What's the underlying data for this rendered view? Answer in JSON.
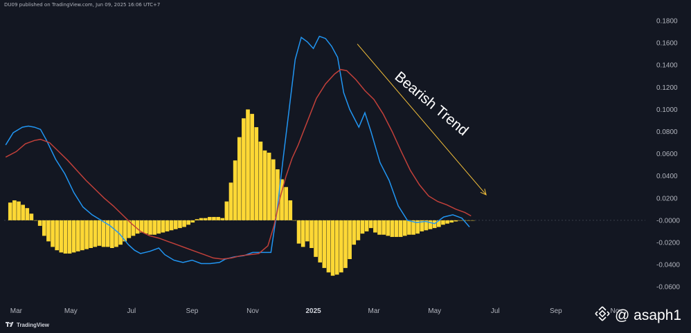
{
  "header": {
    "publisher_line": "DU09 published on TradingView.com, Jun 09, 2025 16:06 UTC+7"
  },
  "footer": {
    "logo_text": "TradingView"
  },
  "watermark": {
    "text": "@ asaph1"
  },
  "colors": {
    "background": "#131722",
    "macd_line": "#2196f3",
    "signal_line": "#c2403a",
    "histogram": "#fdd835",
    "arrow": "#f5c13a",
    "zero_line": "#3a3f4b"
  },
  "chart_data": {
    "type": "bar",
    "title": "",
    "xlabel": "",
    "ylabel": "",
    "ylim": [
      -0.068,
      0.1875
    ],
    "x_tick_labels": [
      {
        "label": "Mar",
        "month_index": 0
      },
      {
        "label": "May",
        "month_index": 2
      },
      {
        "label": "Jul",
        "month_index": 4
      },
      {
        "label": "Sep",
        "month_index": 6
      },
      {
        "label": "Nov",
        "month_index": 8
      },
      {
        "label": "2025",
        "month_index": 10,
        "bold": true
      },
      {
        "label": "Mar",
        "month_index": 12
      },
      {
        "label": "May",
        "month_index": 14
      },
      {
        "label": "Jul",
        "month_index": 16
      },
      {
        "label": "Sep",
        "month_index": 18
      },
      {
        "label": "Nov",
        "month_index": 20
      }
    ],
    "y_tick_labels": [
      "0.1800",
      "0.1600",
      "0.1400",
      "0.1200",
      "0.1000",
      "0.0800",
      "0.0600",
      "0.0400",
      "0.0200",
      "-0.0000",
      "-0.0200",
      "-0.0400",
      "-0.0600"
    ],
    "y_tick_values": [
      0.18,
      0.16,
      0.14,
      0.12,
      0.1,
      0.08,
      0.06,
      0.04,
      0.02,
      0.0,
      -0.02,
      -0.04,
      -0.06
    ],
    "series": [
      {
        "kind": "histogram",
        "x": [
          0,
          0.14,
          0.28,
          0.42,
          0.56,
          0.7,
          0.84,
          0.98,
          1.12,
          1.26,
          1.4,
          1.54,
          1.68,
          1.82,
          1.96,
          2.1,
          2.24,
          2.38,
          2.52,
          2.66,
          2.8,
          2.94,
          3.08,
          3.22,
          3.36,
          3.5,
          3.64,
          3.78,
          3.92,
          4.06,
          4.2,
          4.34,
          4.48,
          4.62,
          4.76,
          4.9,
          5.04,
          5.18,
          5.32,
          5.46,
          5.6,
          5.74,
          5.88,
          6.02,
          6.16,
          6.3,
          6.44,
          6.58,
          6.72,
          6.86,
          7.0,
          7.14,
          7.28,
          7.42,
          7.56,
          7.7,
          7.84,
          7.98,
          8.12,
          8.26,
          8.4,
          8.54,
          8.68,
          8.82,
          8.96,
          9.1,
          9.24,
          9.38,
          9.52,
          9.66,
          9.8,
          9.94,
          10.08,
          10.22,
          10.36,
          10.5,
          10.64,
          10.78,
          10.92,
          11.06,
          11.2,
          11.34,
          11.48,
          11.62,
          11.76,
          11.9,
          12.04,
          12.18,
          12.32,
          12.46,
          12.6,
          12.74,
          12.88,
          13.02,
          13.16,
          13.3,
          13.44,
          13.58,
          13.72,
          13.86,
          14.0,
          14.14,
          14.28,
          14.42,
          14.56,
          14.7,
          14.84,
          14.98,
          15.12,
          15.26
        ],
        "values": [
          0.016,
          0.018,
          0.017,
          0.014,
          0.011,
          0.006,
          0.0,
          -0.005,
          -0.014,
          -0.019,
          -0.024,
          -0.027,
          -0.029,
          -0.03,
          -0.03,
          -0.029,
          -0.028,
          -0.027,
          -0.026,
          -0.025,
          -0.024,
          -0.023,
          -0.024,
          -0.024,
          -0.025,
          -0.024,
          -0.022,
          -0.019,
          -0.016,
          -0.014,
          -0.012,
          -0.011,
          -0.012,
          -0.013,
          -0.013,
          -0.012,
          -0.011,
          -0.01,
          -0.009,
          -0.008,
          -0.007,
          -0.006,
          -0.004,
          -0.002,
          0.001,
          0.002,
          0.002,
          0.003,
          0.003,
          0.003,
          0.002,
          0.017,
          0.034,
          0.054,
          0.075,
          0.092,
          0.1,
          0.096,
          0.084,
          0.071,
          0.063,
          0.061,
          0.055,
          0.046,
          0.037,
          0.03,
          0.018,
          0.0,
          -0.021,
          -0.024,
          -0.019,
          -0.025,
          -0.033,
          -0.038,
          -0.043,
          -0.047,
          -0.05,
          -0.049,
          -0.047,
          -0.043,
          -0.035,
          -0.022,
          -0.018,
          -0.012,
          -0.01,
          -0.007,
          -0.011,
          -0.013,
          -0.013,
          -0.014,
          -0.015,
          -0.015,
          -0.015,
          -0.014,
          -0.013,
          -0.013,
          -0.012,
          -0.01,
          -0.009,
          -0.008,
          -0.007,
          -0.006,
          -0.004,
          -0.003,
          -0.002,
          -0.001,
          0.0,
          0.0,
          0.0,
          0.0
        ]
      },
      {
        "kind": "line",
        "name": "",
        "color": "#2196f3",
        "points": [
          [
            -0.15,
            0.068
          ],
          [
            0.1,
            0.079
          ],
          [
            0.4,
            0.084
          ],
          [
            0.6,
            0.085
          ],
          [
            0.8,
            0.084
          ],
          [
            1.0,
            0.082
          ],
          [
            1.2,
            0.072
          ],
          [
            1.5,
            0.055
          ],
          [
            1.8,
            0.042
          ],
          [
            2.1,
            0.025
          ],
          [
            2.4,
            0.012
          ],
          [
            2.7,
            0.005
          ],
          [
            3.0,
            0.0
          ],
          [
            3.3,
            -0.005
          ],
          [
            3.6,
            -0.012
          ],
          [
            3.9,
            -0.022
          ],
          [
            4.1,
            -0.027
          ],
          [
            4.3,
            -0.03
          ],
          [
            4.6,
            -0.028
          ],
          [
            4.9,
            -0.025
          ],
          [
            5.1,
            -0.031
          ],
          [
            5.4,
            -0.036
          ],
          [
            5.7,
            -0.038
          ],
          [
            6.0,
            -0.036
          ],
          [
            6.3,
            -0.039
          ],
          [
            6.6,
            -0.039
          ],
          [
            6.9,
            -0.038
          ],
          [
            7.1,
            -0.035
          ],
          [
            7.4,
            -0.033
          ],
          [
            7.7,
            -0.032
          ],
          [
            8.0,
            -0.029
          ],
          [
            8.3,
            -0.029
          ],
          [
            8.6,
            -0.029
          ],
          [
            8.8,
            0.008
          ],
          [
            9.0,
            0.055
          ],
          [
            9.2,
            0.1
          ],
          [
            9.4,
            0.145
          ],
          [
            9.6,
            0.165
          ],
          [
            9.8,
            0.161
          ],
          [
            10.0,
            0.155
          ],
          [
            10.2,
            0.166
          ],
          [
            10.4,
            0.164
          ],
          [
            10.6,
            0.157
          ],
          [
            10.8,
            0.147
          ],
          [
            11.0,
            0.115
          ],
          [
            11.2,
            0.1
          ],
          [
            11.5,
            0.084
          ],
          [
            11.7,
            0.097
          ],
          [
            11.9,
            0.08
          ],
          [
            12.2,
            0.052
          ],
          [
            12.5,
            0.036
          ],
          [
            12.8,
            0.013
          ],
          [
            13.1,
            0.0
          ],
          [
            13.4,
            -0.002
          ],
          [
            13.7,
            -0.001
          ],
          [
            14.0,
            -0.003
          ],
          [
            14.3,
            0.003
          ],
          [
            14.6,
            0.005
          ],
          [
            14.9,
            0.002
          ],
          [
            15.15,
            -0.006
          ]
        ]
      },
      {
        "kind": "line",
        "name": "",
        "color": "#c2403a",
        "points": [
          [
            -0.15,
            0.057
          ],
          [
            0.2,
            0.062
          ],
          [
            0.5,
            0.069
          ],
          [
            0.8,
            0.072
          ],
          [
            1.0,
            0.073
          ],
          [
            1.3,
            0.07
          ],
          [
            1.6,
            0.062
          ],
          [
            1.9,
            0.054
          ],
          [
            2.2,
            0.045
          ],
          [
            2.5,
            0.036
          ],
          [
            2.8,
            0.028
          ],
          [
            3.1,
            0.02
          ],
          [
            3.4,
            0.013
          ],
          [
            3.7,
            0.005
          ],
          [
            4.0,
            -0.003
          ],
          [
            4.3,
            -0.01
          ],
          [
            4.6,
            -0.014
          ],
          [
            4.9,
            -0.016
          ],
          [
            5.2,
            -0.019
          ],
          [
            5.5,
            -0.022
          ],
          [
            5.8,
            -0.025
          ],
          [
            6.1,
            -0.028
          ],
          [
            6.4,
            -0.031
          ],
          [
            6.7,
            -0.034
          ],
          [
            7.0,
            -0.035
          ],
          [
            7.3,
            -0.034
          ],
          [
            7.6,
            -0.032
          ],
          [
            7.9,
            -0.031
          ],
          [
            8.2,
            -0.03
          ],
          [
            8.5,
            -0.023
          ],
          [
            8.7,
            -0.005
          ],
          [
            8.9,
            0.02
          ],
          [
            9.1,
            0.04
          ],
          [
            9.3,
            0.056
          ],
          [
            9.5,
            0.068
          ],
          [
            9.7,
            0.082
          ],
          [
            9.9,
            0.096
          ],
          [
            10.1,
            0.11
          ],
          [
            10.4,
            0.123
          ],
          [
            10.7,
            0.132
          ],
          [
            10.9,
            0.136
          ],
          [
            11.1,
            0.135
          ],
          [
            11.4,
            0.127
          ],
          [
            11.7,
            0.117
          ],
          [
            12.0,
            0.109
          ],
          [
            12.3,
            0.096
          ],
          [
            12.6,
            0.08
          ],
          [
            12.9,
            0.062
          ],
          [
            13.2,
            0.045
          ],
          [
            13.5,
            0.032
          ],
          [
            13.8,
            0.022
          ],
          [
            14.1,
            0.017
          ],
          [
            14.4,
            0.014
          ],
          [
            14.7,
            0.01
          ],
          [
            15.0,
            0.007
          ],
          [
            15.2,
            0.004
          ]
        ]
      }
    ],
    "annotations": [
      {
        "type": "arrow",
        "from": [
          11.45,
          0.159
        ],
        "to": [
          15.7,
          0.023
        ]
      },
      {
        "type": "text",
        "text": "Bearish Trend",
        "anchor": [
          13.8,
          0.102
        ],
        "rotation_deg": 40
      }
    ]
  }
}
